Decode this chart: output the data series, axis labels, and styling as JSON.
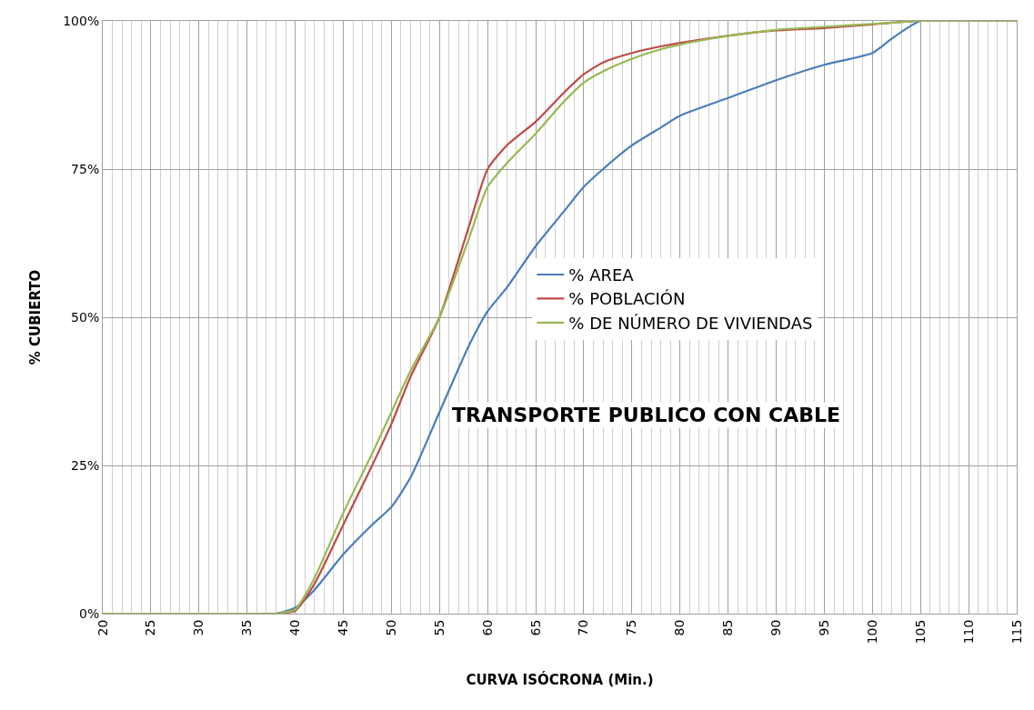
{
  "chart_data": {
    "type": "line",
    "xlabel": "CURVA ISÓCRONA (Min.)",
    "ylabel": "% CUBIERTO",
    "x": [
      20,
      25,
      30,
      35,
      38,
      40,
      42,
      45,
      48,
      50,
      52,
      55,
      58,
      60,
      62,
      65,
      68,
      70,
      72,
      75,
      78,
      80,
      85,
      90,
      95,
      100,
      102,
      105,
      110,
      115
    ],
    "series": [
      {
        "name": "% AREA",
        "color": "#4a7ebb",
        "values": [
          null,
          null,
          null,
          0,
          0,
          1,
          4,
          10,
          15,
          18,
          23,
          34,
          45,
          51,
          55,
          62,
          68,
          72,
          75,
          79,
          82,
          84,
          87,
          90,
          92.6,
          94.6,
          97,
          100,
          100,
          100
        ]
      },
      {
        "name": "% POBLACIÓN",
        "color": "#be4b48",
        "values": [
          null,
          null,
          null,
          0,
          0,
          0.5,
          5,
          15,
          25,
          32,
          40,
          50,
          65,
          75,
          79,
          83,
          88,
          91,
          93,
          94.6,
          95.7,
          96.3,
          97.5,
          98.4,
          98.8,
          99.4,
          99.7,
          100,
          null,
          null
        ]
      },
      {
        "name": "% DE NÚMERO DE VIVIENDAS",
        "color": "#98b954",
        "values": [
          0,
          0,
          0,
          0,
          0,
          0.7,
          6,
          17,
          27,
          34,
          41,
          50,
          63,
          72,
          76,
          81,
          86.5,
          89.6,
          91.5,
          93.6,
          95.2,
          96,
          97.5,
          98.5,
          99,
          99.5,
          99.7,
          100,
          100,
          100
        ]
      }
    ],
    "xlim": [
      20,
      115
    ],
    "xticks": [
      20,
      25,
      30,
      35,
      40,
      45,
      50,
      55,
      60,
      65,
      70,
      75,
      80,
      85,
      90,
      95,
      100,
      105,
      110,
      115
    ],
    "ylim": [
      0,
      100
    ],
    "yticks": [
      {
        "value": 0,
        "label": "0%"
      },
      {
        "value": 25,
        "label": "25%"
      },
      {
        "value": 50,
        "label": "50%"
      },
      {
        "value": 75,
        "label": "75%"
      },
      {
        "value": 100,
        "label": "100%"
      }
    ],
    "grid": true,
    "legend": "right",
    "marker": "none",
    "line_style": "solid",
    "annotations": [
      "TRANSPORTE PUBLICO CON CABLE"
    ]
  }
}
